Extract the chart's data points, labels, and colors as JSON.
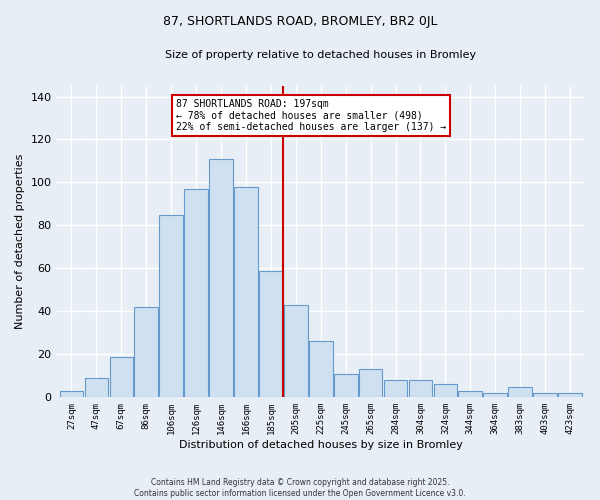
{
  "title": "87, SHORTLANDS ROAD, BROMLEY, BR2 0JL",
  "subtitle": "Size of property relative to detached houses in Bromley",
  "xlabel": "Distribution of detached houses by size in Bromley",
  "ylabel": "Number of detached properties",
  "bar_labels": [
    "27sqm",
    "47sqm",
    "67sqm",
    "86sqm",
    "106sqm",
    "126sqm",
    "146sqm",
    "166sqm",
    "185sqm",
    "205sqm",
    "225sqm",
    "245sqm",
    "265sqm",
    "284sqm",
    "304sqm",
    "324sqm",
    "344sqm",
    "364sqm",
    "383sqm",
    "403sqm",
    "423sqm"
  ],
  "bar_values": [
    3,
    9,
    19,
    42,
    85,
    97,
    111,
    98,
    59,
    43,
    26,
    11,
    13,
    8,
    8,
    6,
    3,
    2,
    5,
    2,
    2
  ],
  "bar_color": "#cfe0f0",
  "bar_edge_color": "#6699cc",
  "vline_x_index": 8.5,
  "vline_color": "#cc0000",
  "annotation_title": "87 SHORTLANDS ROAD: 197sqm",
  "annotation_line1": "← 78% of detached houses are smaller (498)",
  "annotation_line2": "22% of semi-detached houses are larger (137) →",
  "annotation_box_color": "#ffffff",
  "annotation_box_edge": "#cc0000",
  "ylim": [
    0,
    145
  ],
  "yticks": [
    0,
    20,
    40,
    60,
    80,
    100,
    120,
    140
  ],
  "footer1": "Contains HM Land Registry data © Crown copyright and database right 2025.",
  "footer2": "Contains public sector information licensed under the Open Government Licence v3.0.",
  "background_color": "#e8eef5",
  "plot_bg_color": "#e8eef5",
  "grid_color": "#ffffff",
  "title_fontsize": 9,
  "subtitle_fontsize": 8
}
